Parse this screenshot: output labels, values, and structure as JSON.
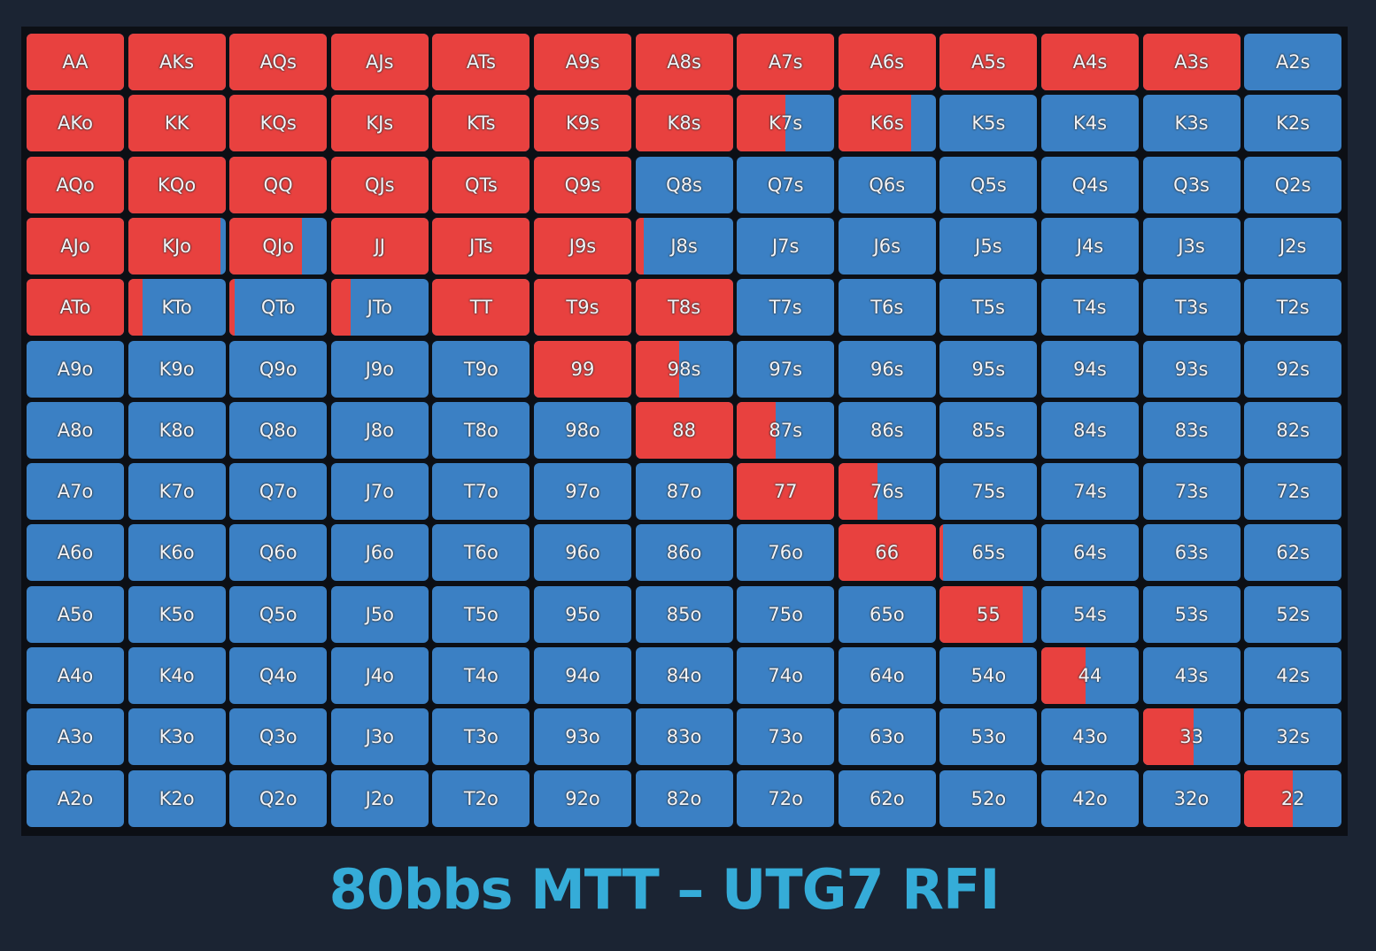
{
  "title": "80bbs MTT – UTG7 RFI",
  "colors": {
    "raise": "#e8413f",
    "fold": "#3b80c4"
  },
  "grid": {
    "labels": [
      [
        "AA",
        "AKs",
        "AQs",
        "AJs",
        "ATs",
        "A9s",
        "A8s",
        "A7s",
        "A6s",
        "A5s",
        "A4s",
        "A3s",
        "A2s"
      ],
      [
        "AKo",
        "KK",
        "KQs",
        "KJs",
        "KTs",
        "K9s",
        "K8s",
        "K7s",
        "K6s",
        "K5s",
        "K4s",
        "K3s",
        "K2s"
      ],
      [
        "AQo",
        "KQo",
        "QQ",
        "QJs",
        "QTs",
        "Q9s",
        "Q8s",
        "Q7s",
        "Q6s",
        "Q5s",
        "Q4s",
        "Q3s",
        "Q2s"
      ],
      [
        "AJo",
        "KJo",
        "QJo",
        "JJ",
        "JTs",
        "J9s",
        "J8s",
        "J7s",
        "J6s",
        "J5s",
        "J4s",
        "J3s",
        "J2s"
      ],
      [
        "ATo",
        "KTo",
        "QTo",
        "JTo",
        "TT",
        "T9s",
        "T8s",
        "T7s",
        "T6s",
        "T5s",
        "T4s",
        "T3s",
        "T2s"
      ],
      [
        "A9o",
        "K9o",
        "Q9o",
        "J9o",
        "T9o",
        "99",
        "98s",
        "97s",
        "96s",
        "95s",
        "94s",
        "93s",
        "92s"
      ],
      [
        "A8o",
        "K8o",
        "Q8o",
        "J8o",
        "T8o",
        "98o",
        "88",
        "87s",
        "86s",
        "85s",
        "84s",
        "83s",
        "82s"
      ],
      [
        "A7o",
        "K7o",
        "Q7o",
        "J7o",
        "T7o",
        "97o",
        "87o",
        "77",
        "76s",
        "75s",
        "74s",
        "73s",
        "72s"
      ],
      [
        "A6o",
        "K6o",
        "Q6o",
        "J6o",
        "T6o",
        "96o",
        "86o",
        "76o",
        "66",
        "65s",
        "64s",
        "63s",
        "62s"
      ],
      [
        "A5o",
        "K5o",
        "Q5o",
        "J5o",
        "T5o",
        "95o",
        "85o",
        "75o",
        "65o",
        "55",
        "54s",
        "53s",
        "52s"
      ],
      [
        "A4o",
        "K4o",
        "Q4o",
        "J4o",
        "T4o",
        "94o",
        "84o",
        "74o",
        "64o",
        "54o",
        "44",
        "43s",
        "42s"
      ],
      [
        "A3o",
        "K3o",
        "Q3o",
        "J3o",
        "T3o",
        "93o",
        "83o",
        "73o",
        "63o",
        "53o",
        "43o",
        "33",
        "32s"
      ],
      [
        "A2o",
        "K2o",
        "Q2o",
        "J2o",
        "T2o",
        "92o",
        "82o",
        "72o",
        "62o",
        "52o",
        "42o",
        "32o",
        "22"
      ]
    ],
    "raise": [
      [
        100,
        100,
        100,
        100,
        100,
        100,
        100,
        100,
        100,
        100,
        100,
        100,
        0
      ],
      [
        100,
        100,
        100,
        100,
        100,
        100,
        100,
        50,
        75,
        0,
        0,
        0,
        0
      ],
      [
        100,
        100,
        100,
        100,
        100,
        100,
        0,
        0,
        0,
        0,
        0,
        0,
        0
      ],
      [
        100,
        95,
        74,
        100,
        100,
        100,
        9,
        0,
        0,
        0,
        0,
        0,
        0
      ],
      [
        100,
        15,
        5,
        20,
        100,
        100,
        100,
        0,
        0,
        0,
        0,
        0,
        0
      ],
      [
        0,
        0,
        0,
        0,
        0,
        100,
        45,
        0,
        0,
        0,
        0,
        0,
        0
      ],
      [
        0,
        0,
        0,
        0,
        0,
        0,
        100,
        40,
        0,
        0,
        0,
        0,
        0
      ],
      [
        0,
        0,
        0,
        0,
        0,
        0,
        0,
        100,
        40,
        0,
        0,
        0,
        0
      ],
      [
        0,
        0,
        0,
        0,
        0,
        0,
        0,
        0,
        100,
        3,
        0,
        0,
        0
      ],
      [
        0,
        0,
        0,
        0,
        0,
        0,
        0,
        0,
        0,
        85,
        0,
        0,
        0
      ],
      [
        0,
        0,
        0,
        0,
        0,
        0,
        0,
        0,
        0,
        0,
        45,
        0,
        0
      ],
      [
        0,
        0,
        0,
        0,
        0,
        0,
        0,
        0,
        0,
        0,
        0,
        52,
        0
      ],
      [
        0,
        0,
        0,
        0,
        0,
        0,
        0,
        0,
        0,
        0,
        0,
        0,
        50
      ]
    ]
  }
}
